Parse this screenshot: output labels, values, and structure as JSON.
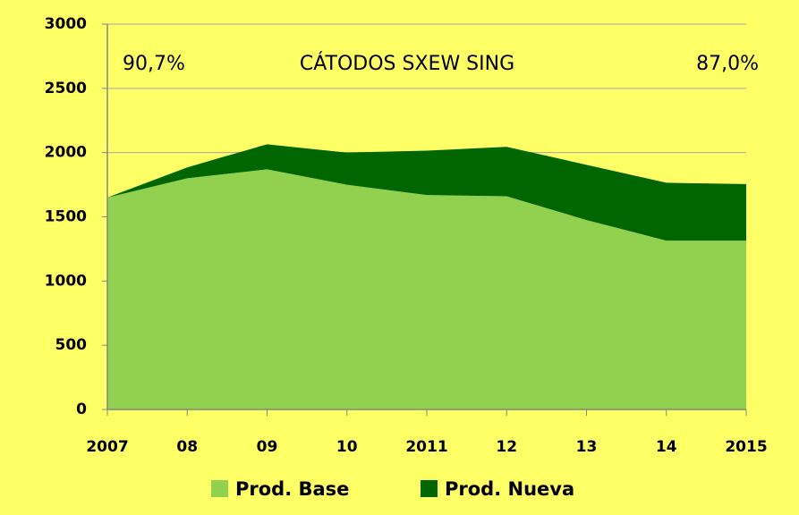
{
  "chart_data": {
    "type": "stacked_area",
    "title": "CÁTODOS SXEW SING",
    "annotations": [
      "90,7%",
      "87,0%"
    ],
    "categories": [
      "2007",
      "08",
      "09",
      "10",
      "2011",
      "12",
      "13",
      "14",
      "2015"
    ],
    "series": [
      {
        "name": "Prod. Base",
        "color": "#92d050",
        "values": [
          1650,
          1800,
          1870,
          1750,
          1670,
          1660,
          1475,
          1315,
          1315
        ]
      },
      {
        "name": "Prod. Nueva",
        "color": "#006600",
        "values": [
          0,
          85,
          195,
          250,
          345,
          385,
          430,
          450,
          440
        ]
      }
    ],
    "ylim": [
      0,
      3000
    ],
    "yticks": [
      0,
      500,
      1000,
      1500,
      2000,
      2500,
      3000
    ],
    "grid": true,
    "legend": "bottom"
  }
}
